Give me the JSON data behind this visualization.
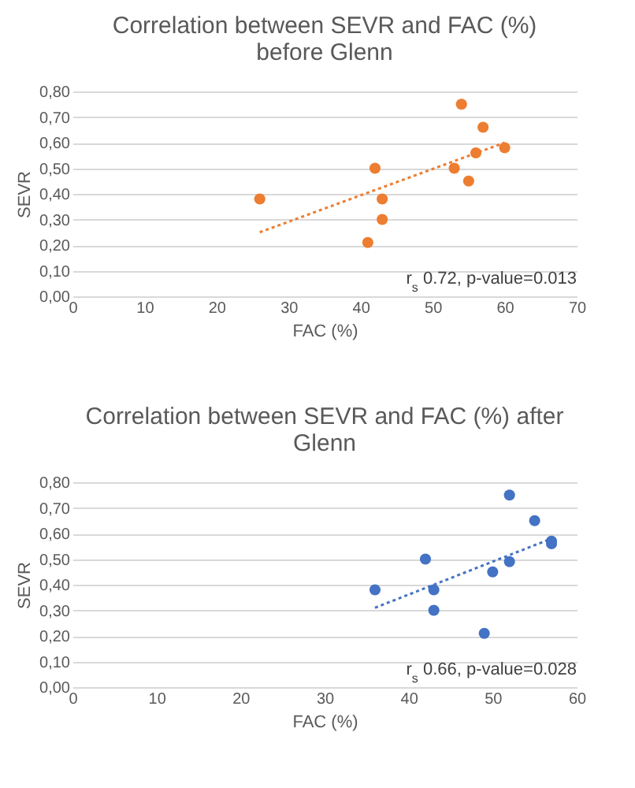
{
  "chart_data": [
    {
      "type": "scatter",
      "title": "Correlation between SEVR and FAC (%) before Glenn",
      "xlabel": "FAC (%)",
      "ylabel": "SEVR",
      "xlim": [
        0,
        70
      ],
      "xticks": [
        0,
        10,
        20,
        30,
        40,
        50,
        60,
        70
      ],
      "ylim": [
        0,
        0.8
      ],
      "yticks": [
        {
          "value": 0,
          "label": "0,00"
        },
        {
          "value": 0.1,
          "label": "0,10"
        },
        {
          "value": 0.2,
          "label": "0,20"
        },
        {
          "value": 0.3,
          "label": "0,30"
        },
        {
          "value": 0.4,
          "label": "0,40"
        },
        {
          "value": 0.5,
          "label": "0,50"
        },
        {
          "value": 0.6,
          "label": "0,60"
        },
        {
          "value": 0.7,
          "label": "0,70"
        },
        {
          "value": 0.8,
          "label": "0,80"
        }
      ],
      "grid": "y",
      "marker": "circle",
      "annotations": [
        "r$_{s}$ 0.72, p-value=0.013"
      ],
      "series": [
        {
          "type": "scatter",
          "color": "#ed7d31",
          "x": [
            26,
            41,
            42,
            43,
            43,
            53,
            54,
            55,
            56,
            57,
            60
          ],
          "values": [
            0.38,
            0.21,
            0.5,
            0.38,
            0.3,
            0.5,
            0.75,
            0.45,
            0.56,
            0.66,
            0.58
          ]
        },
        {
          "type": "line",
          "color": "#ed7d31",
          "line_style": "dotted",
          "marker": "none",
          "x": [
            26,
            60
          ],
          "values": [
            0.25,
            0.6
          ]
        }
      ]
    },
    {
      "type": "scatter",
      "title": "Correlation between SEVR and FAC (%) after Glenn",
      "xlabel": "FAC (%)",
      "ylabel": "SEVR",
      "xlim": [
        0,
        60
      ],
      "xticks": [
        0,
        10,
        20,
        30,
        40,
        50,
        60
      ],
      "ylim": [
        0,
        0.8
      ],
      "yticks": [
        {
          "value": 0,
          "label": "0,00"
        },
        {
          "value": 0.1,
          "label": "0,10"
        },
        {
          "value": 0.2,
          "label": "0,20"
        },
        {
          "value": 0.3,
          "label": "0,30"
        },
        {
          "value": 0.4,
          "label": "0,40"
        },
        {
          "value": 0.5,
          "label": "0,50"
        },
        {
          "value": 0.6,
          "label": "0,60"
        },
        {
          "value": 0.7,
          "label": "0,70"
        },
        {
          "value": 0.8,
          "label": "0,80"
        }
      ],
      "grid": "y",
      "marker": "circle",
      "annotations": [
        "r$_{s}$ 0.66, p-value=0.028"
      ],
      "series": [
        {
          "type": "scatter",
          "color": "#4472c4",
          "x": [
            36,
            42,
            43,
            43,
            49,
            50,
            52,
            52,
            55,
            57,
            57
          ],
          "values": [
            0.38,
            0.5,
            0.38,
            0.3,
            0.21,
            0.45,
            0.75,
            0.49,
            0.65,
            0.57,
            0.56
          ]
        },
        {
          "type": "line",
          "color": "#4472c4",
          "line_style": "dotted",
          "marker": "none",
          "x": [
            36,
            57
          ],
          "values": [
            0.31,
            0.58
          ]
        }
      ]
    }
  ]
}
